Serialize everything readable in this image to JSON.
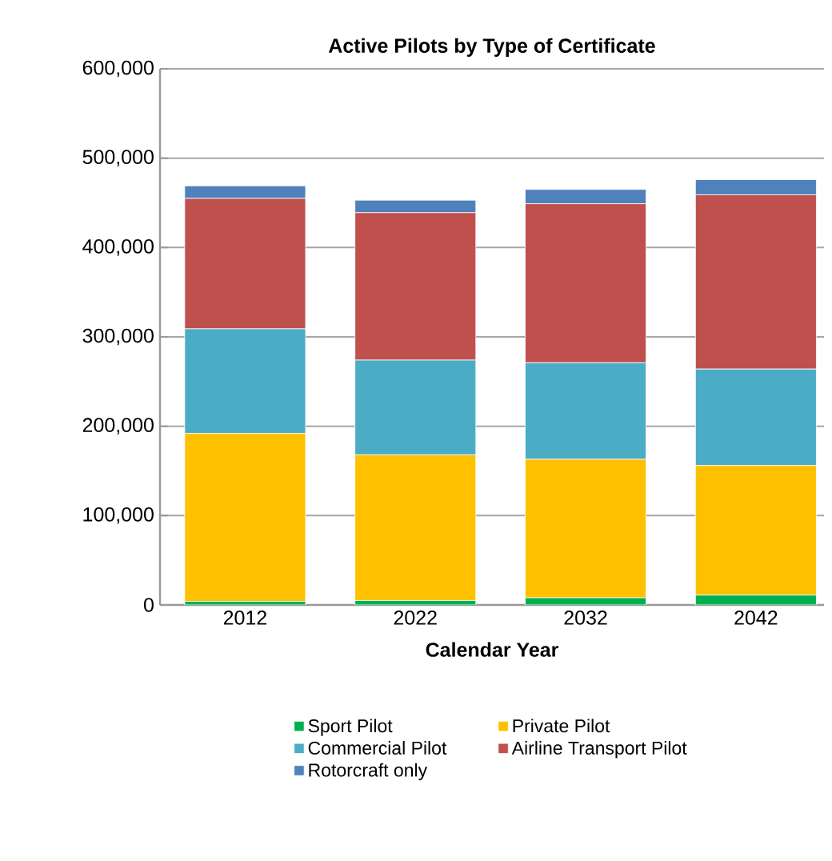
{
  "chart_data": {
    "type": "bar",
    "stacked": true,
    "title": "Active Pilots by Type of Certificate",
    "xlabel": "Calendar Year",
    "categories": [
      "2012",
      "2022",
      "2032",
      "2042"
    ],
    "series": [
      {
        "name": "Sport Pilot",
        "color": "#00b050",
        "values": [
          4000,
          5000,
          8000,
          11000
        ]
      },
      {
        "name": "Private Pilot",
        "color": "#ffc000",
        "values": [
          188000,
          163000,
          155000,
          145000
        ]
      },
      {
        "name": "Commercial Pilot",
        "color": "#4bacc6",
        "values": [
          117000,
          106000,
          108000,
          108000
        ]
      },
      {
        "name": "Airline Transport Pilot",
        "color": "#c0504d",
        "values": [
          146000,
          165000,
          178000,
          195000
        ]
      },
      {
        "name": "Rotorcraft only",
        "color": "#4f81bd",
        "values": [
          14000,
          14000,
          16000,
          17000
        ]
      }
    ],
    "ylim": [
      0,
      600000
    ],
    "yticks": [
      {
        "value": 0,
        "label": "0"
      },
      {
        "value": 100000,
        "label": "100,000"
      },
      {
        "value": 200000,
        "label": "200,000"
      },
      {
        "value": 300000,
        "label": "300,000"
      },
      {
        "value": 400000,
        "label": "400,000"
      },
      {
        "value": 500000,
        "label": "500,000"
      },
      {
        "value": 600000,
        "label": "600,000"
      }
    ],
    "grid": "y",
    "legend": "bottom"
  }
}
